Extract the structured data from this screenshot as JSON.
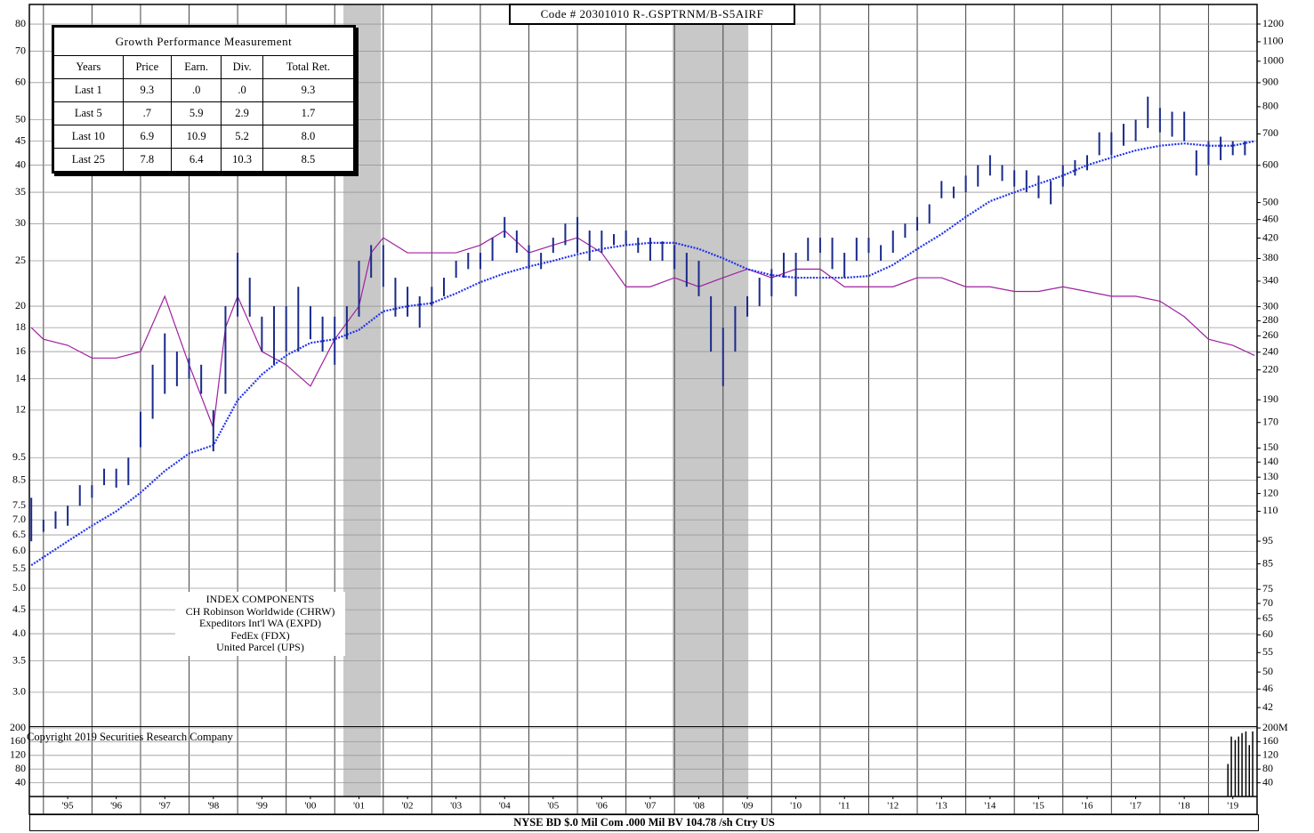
{
  "code_label": "Code # 20301010 R-.GSPTRNM/B-S5AIRF",
  "copyright": "Copyright 2019 Securities Research Company",
  "footer": "NYSE BD  $.0 Mil Com .000 Mil BV 104.78 /sh  Ctry US",
  "table": {
    "title": "Growth Performance Measurement",
    "headers": [
      "Years",
      "Price",
      "Earn.",
      "Div.",
      "Total Ret."
    ],
    "rows": [
      [
        "Last 1",
        "9.3",
        ".0",
        ".0",
        "9.3"
      ],
      [
        "Last 5",
        ".7",
        "5.9",
        "2.9",
        "1.7"
      ],
      [
        "Last 10",
        "6.9",
        "10.9",
        "5.2",
        "8.0"
      ],
      [
        "Last 25",
        "7.8",
        "6.4",
        "10.3",
        "8.5"
      ]
    ]
  },
  "index_components": {
    "title": "INDEX COMPONENTS",
    "items": [
      "CH Robinson Worldwide (CHRW)",
      "Expeditors Int'l WA (EXPD)",
      "FedEx (FDX)",
      "United Parcel (UPS)"
    ]
  },
  "chart_data": {
    "type": "stock",
    "log_scale": true,
    "grid": true,
    "xlim": [
      1994.71,
      2020.0
    ],
    "ylim": [
      2.55,
      88.1
    ],
    "y2lim": [
      38.5,
      1321
    ],
    "vlim": [
      0,
      200
    ],
    "yticks": [
      80,
      70,
      60,
      50,
      45,
      40,
      35,
      30,
      25,
      20,
      18,
      16,
      14,
      12,
      9.5,
      8.5,
      7.5,
      {
        "value": 7,
        "label": "7.0"
      },
      6.5,
      {
        "value": 6,
        "label": "6.0"
      },
      5.5,
      {
        "value": 5,
        "label": "5.0"
      },
      4.5,
      {
        "value": 4,
        "label": "4.0"
      },
      3.5,
      {
        "value": 3,
        "label": "3.0"
      }
    ],
    "y2ticks": [
      1200,
      1100,
      1000,
      900,
      800,
      700,
      600,
      500,
      460,
      420,
      380,
      340,
      300,
      280,
      260,
      240,
      220,
      190,
      170,
      150,
      140,
      130,
      120,
      110,
      95,
      85,
      75,
      70,
      65,
      60,
      55,
      50,
      46,
      42
    ],
    "vticks": [
      200,
      160,
      120,
      80,
      40
    ],
    "v2ticks": [
      {
        "value": 200,
        "label": "200M"
      },
      160,
      120,
      80,
      40
    ],
    "xgrid": [
      1995,
      1996,
      1997,
      1998,
      1999,
      2000,
      2001,
      2002,
      2003,
      2004,
      2005,
      2006,
      2007,
      2008,
      2009,
      2010,
      2011,
      2012,
      2013,
      2014,
      2015,
      2016,
      2017,
      2018,
      2019
    ],
    "xticks": [
      {
        "value": 1995.5,
        "label": "'95"
      },
      {
        "value": 1996.5,
        "label": "'96"
      },
      {
        "value": 1997.5,
        "label": "'97"
      },
      {
        "value": 1998.5,
        "label": "'98"
      },
      {
        "value": 1999.5,
        "label": "'99"
      },
      {
        "value": 2000.5,
        "label": "'00"
      },
      {
        "value": 2001.5,
        "label": "'01"
      },
      {
        "value": 2002.5,
        "label": "'02"
      },
      {
        "value": 2003.5,
        "label": "'03"
      },
      {
        "value": 2004.5,
        "label": "'04"
      },
      {
        "value": 2005.5,
        "label": "'05"
      },
      {
        "value": 2006.5,
        "label": "'06"
      },
      {
        "value": 2007.5,
        "label": "'07"
      },
      {
        "value": 2008.5,
        "label": "'08"
      },
      {
        "value": 2009.5,
        "label": "'09"
      },
      {
        "value": 2010.5,
        "label": "'10"
      },
      {
        "value": 2011.5,
        "label": "'11"
      },
      {
        "value": 2012.5,
        "label": "'12"
      },
      {
        "value": 2013.5,
        "label": "'13"
      },
      {
        "value": 2014.5,
        "label": "'14"
      },
      {
        "value": 2015.5,
        "label": "'15"
      },
      {
        "value": 2016.5,
        "label": "'16"
      },
      {
        "value": 2017.5,
        "label": "'17"
      },
      {
        "value": 2018.5,
        "label": "'18"
      },
      {
        "value": 2019.5,
        "label": "'19"
      }
    ],
    "shaded_periods": [
      [
        2001.18,
        2001.95
      ],
      [
        2007.96,
        2009.52
      ]
    ],
    "shade_color": "#c8c8c8",
    "price": {
      "color": "#1a2a8a",
      "x": [
        1994.75,
        1995,
        1995.25,
        1995.5,
        1995.75,
        1996,
        1996.25,
        1996.5,
        1996.75,
        1997,
        1997.25,
        1997.5,
        1997.75,
        1998,
        1998.25,
        1998.5,
        1998.75,
        1999,
        1999.25,
        1999.5,
        1999.75,
        2000,
        2000.25,
        2000.5,
        2000.75,
        2001,
        2001.25,
        2001.5,
        2001.75,
        2002,
        2002.25,
        2002.5,
        2002.75,
        2003,
        2003.25,
        2003.5,
        2003.75,
        2004,
        2004.25,
        2004.5,
        2004.75,
        2005,
        2005.25,
        2005.5,
        2005.75,
        2006,
        2006.25,
        2006.5,
        2006.75,
        2007,
        2007.25,
        2007.5,
        2007.75,
        2008,
        2008.25,
        2008.5,
        2008.75,
        2009,
        2009.25,
        2009.5,
        2009.75,
        2010,
        2010.25,
        2010.5,
        2010.75,
        2011,
        2011.25,
        2011.5,
        2011.75,
        2012,
        2012.25,
        2012.5,
        2012.75,
        2013,
        2013.25,
        2013.5,
        2013.75,
        2014,
        2014.25,
        2014.5,
        2014.75,
        2015,
        2015.25,
        2015.5,
        2015.75,
        2016,
        2016.25,
        2016.5,
        2016.75,
        2017,
        2017.25,
        2017.5,
        2017.75,
        2018,
        2018.25,
        2018.5,
        2018.75,
        2019,
        2019.25,
        2019.5,
        2019.75
      ],
      "high": [
        7.8,
        7.0,
        7.3,
        7.5,
        8.3,
        8.3,
        9.0,
        9.0,
        9.5,
        11.9,
        15,
        17.5,
        16,
        15.5,
        15,
        12,
        20,
        26,
        23,
        19,
        20,
        20,
        22,
        20,
        19,
        19,
        20,
        25,
        27,
        27,
        23,
        22,
        21,
        22,
        23,
        25,
        26,
        26,
        28,
        31,
        29,
        27,
        26,
        28,
        30,
        31,
        29,
        29,
        28.5,
        29,
        28,
        28,
        27.5,
        27,
        26,
        25,
        21,
        18,
        20,
        21,
        23,
        24,
        26,
        26,
        28,
        28,
        28,
        26,
        28,
        28,
        27,
        29,
        30,
        31,
        33,
        37,
        36,
        38,
        40,
        42,
        40,
        39,
        39,
        38,
        37,
        40,
        41,
        42,
        47,
        47,
        49,
        50,
        56,
        53,
        52,
        52,
        43,
        45,
        46,
        45,
        45
      ],
      "low": [
        6.3,
        6.6,
        6.7,
        6.8,
        7.5,
        7.8,
        8.3,
        8.2,
        8.3,
        10.0,
        11.5,
        13,
        13.5,
        14,
        13,
        9.8,
        13,
        19,
        19,
        16,
        15,
        16,
        16,
        17,
        16,
        15,
        17,
        19,
        23,
        22,
        19,
        19,
        18,
        20,
        21,
        23,
        24,
        24,
        25,
        28,
        26,
        24,
        24,
        26,
        27,
        26,
        25,
        26,
        27,
        27,
        26,
        25,
        25,
        24,
        22,
        21,
        16,
        13.5,
        16,
        19,
        20,
        21,
        23,
        21,
        25,
        26,
        24,
        23,
        25,
        26,
        25,
        26,
        28,
        29,
        30,
        34,
        34,
        35,
        36,
        38,
        37,
        36,
        35,
        34,
        33,
        36,
        38,
        39,
        42,
        42,
        44,
        45,
        48,
        47,
        46,
        45,
        38,
        40,
        41,
        42,
        42
      ]
    },
    "moving_average": {
      "color": "#2233ee",
      "x": [
        1994.75,
        1995.5,
        1996,
        1996.5,
        1997,
        1997.5,
        1998,
        1998.5,
        1999,
        1999.5,
        2000,
        2000.5,
        2001,
        2001.5,
        2002,
        2002.5,
        2003,
        2003.5,
        2004,
        2004.5,
        2005,
        2005.5,
        2006,
        2006.5,
        2007,
        2007.5,
        2008,
        2008.5,
        2009,
        2009.5,
        2010,
        2010.5,
        2011,
        2011.5,
        2012,
        2012.5,
        2013,
        2013.5,
        2014,
        2014.5,
        2015,
        2015.5,
        2016,
        2016.5,
        2017,
        2017.5,
        2018,
        2018.5,
        2019,
        2019.5,
        2019.95
      ],
      "values": [
        5.6,
        6.3,
        6.8,
        7.3,
        8.0,
        8.9,
        9.7,
        10.1,
        12.6,
        14.3,
        15.7,
        16.7,
        17.0,
        17.8,
        19.5,
        20.0,
        20.3,
        21.3,
        22.5,
        23.5,
        24.3,
        25.0,
        25.8,
        26.5,
        27.0,
        27.3,
        27.3,
        26.5,
        25.3,
        24.0,
        23.3,
        23.0,
        23.0,
        23.0,
        23.2,
        24.5,
        26.5,
        28.5,
        31.0,
        33.5,
        35.0,
        36.5,
        38.0,
        40.0,
        41.5,
        43.0,
        44.0,
        44.5,
        44.0,
        44.0,
        45.0
      ]
    },
    "relative_strength": {
      "color": "#a020a0",
      "x": [
        1994.75,
        1995,
        1995.5,
        1996,
        1996.5,
        1997,
        1997.5,
        1998,
        1998.5,
        1998.75,
        1999,
        1999.5,
        2000,
        2000.5,
        2001,
        2001.5,
        2001.75,
        2002,
        2002.5,
        2003,
        2003.5,
        2004,
        2004.5,
        2005,
        2005.5,
        2006,
        2006.5,
        2007,
        2007.5,
        2008,
        2008.5,
        2009,
        2009.5,
        2010,
        2010.5,
        2011,
        2011.5,
        2012,
        2012.5,
        2013,
        2013.5,
        2014,
        2014.5,
        2015,
        2015.5,
        2016,
        2016.5,
        2017,
        2017.5,
        2018,
        2018.5,
        2019,
        2019.5,
        2019.95
      ],
      "values": [
        18,
        17,
        16.5,
        15.5,
        15.5,
        16,
        21,
        15,
        11,
        18,
        21,
        16,
        15,
        13.5,
        17,
        20,
        26,
        28,
        26,
        26,
        26,
        27,
        29,
        26,
        27,
        28,
        26,
        22,
        22,
        23,
        22,
        23,
        24,
        23,
        24,
        24,
        22,
        22,
        22,
        23,
        23,
        22,
        22,
        21.5,
        21.5,
        22,
        21.5,
        21,
        21,
        20.5,
        19,
        17,
        16.5,
        15.7
      ]
    },
    "volume": {
      "color": "#000000",
      "x": [
        2019.4,
        2019.47,
        2019.55,
        2019.62,
        2019.69,
        2019.77,
        2019.84,
        2019.91
      ],
      "values": [
        95,
        175,
        165,
        175,
        185,
        190,
        150,
        190
      ]
    }
  }
}
